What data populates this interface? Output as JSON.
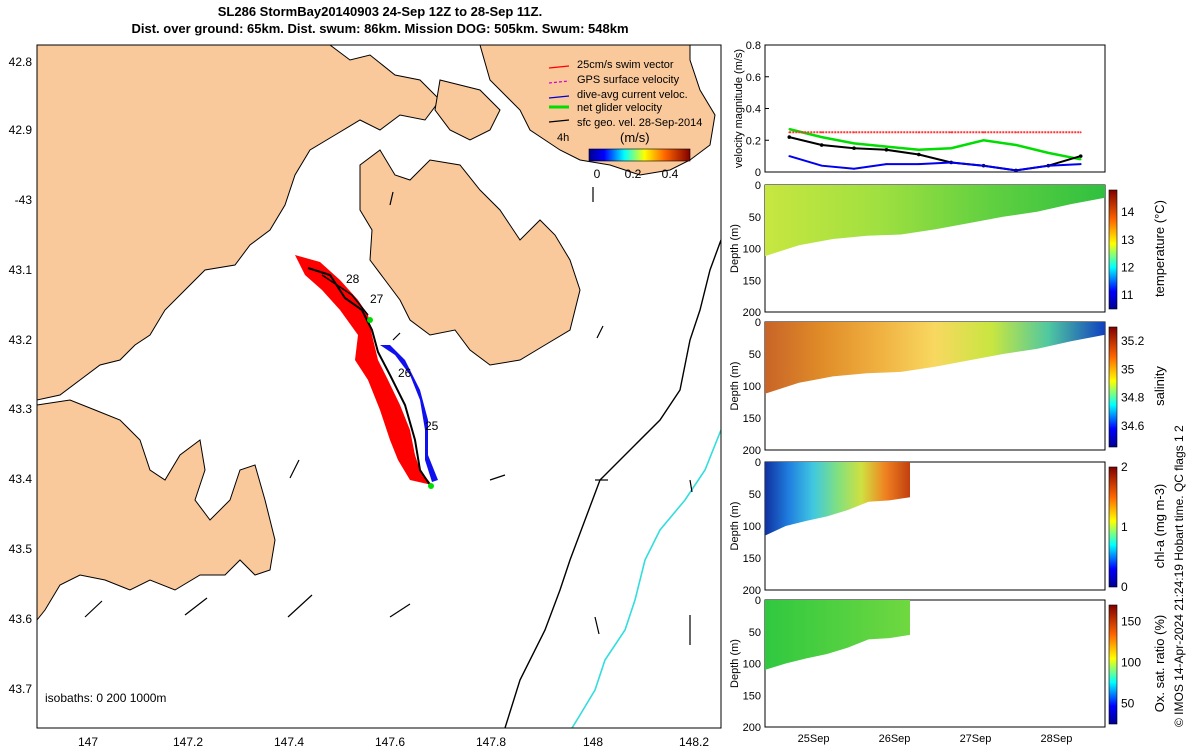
{
  "header": {
    "line1": "SL286 StormBay20140903 24-Sep 12Z to 28-Sep 11Z.",
    "line2": "Dist. over ground: 65km. Dist. swum: 86km. Mission DOG: 505km. Swum: 548km"
  },
  "map": {
    "lon_ticks": [
      "147",
      "147.2",
      "147.4",
      "147.6",
      "147.8",
      "148",
      "148.2"
    ],
    "lat_ticks": [
      "42.8",
      "42.9",
      "-43",
      "43.1",
      "43.2",
      "43.3",
      "43.4",
      "43.5",
      "43.6",
      "43.7"
    ],
    "isobath_label": "isobaths: 0   200  1000m",
    "legend": [
      {
        "label": "25cm/s swim vector",
        "color": "#ff0000"
      },
      {
        "label": "GPS surface velocity",
        "color": "#cc00cc"
      },
      {
        "label": "dive-avg current veloc.",
        "color": "#0000cc"
      },
      {
        "label": "net glider velocity",
        "color": "#00dd00"
      },
      {
        "label": "sfc geo. vel. 28-Sep-2014",
        "color": "#000000"
      }
    ],
    "legend_time": "4h",
    "colorbar_unit": "(m/s)",
    "colorbar_ticks": [
      "0",
      "0.2",
      "0.4"
    ],
    "day_labels": [
      "28",
      "27",
      "26",
      "25"
    ],
    "land_color": "#f9c89b",
    "track_color": "#ff0000"
  },
  "copyright": "© IMOS 14-Apr-2024 21:24:19 Hobart time. QC flags 1  2",
  "chart_data": [
    {
      "type": "line",
      "ylabel": "velocity magnitude (m/s)",
      "ylim": [
        0,
        0.8
      ],
      "yticks": [
        "0",
        "0.2",
        "0.4",
        "0.6",
        "0.8"
      ],
      "x": [
        "24.9",
        "25.3",
        "25.7",
        "26.1",
        "26.5",
        "26.9",
        "27.3",
        "27.7",
        "28.1",
        "28.5"
      ],
      "series": [
        {
          "name": "",
          "color": "#00dd00",
          "values": [
            0.27,
            0.22,
            0.18,
            0.16,
            0.14,
            0.15,
            0.2,
            0.17,
            0.12,
            0.08
          ]
        },
        {
          "name": "",
          "color": "#000000",
          "values": [
            0.22,
            0.17,
            0.15,
            0.14,
            0.11,
            0.06,
            0.04,
            0.01,
            0.04,
            0.1
          ]
        },
        {
          "name": "",
          "color": "#0000ee",
          "values": [
            0.1,
            0.04,
            0.02,
            0.05,
            0.05,
            0.06,
            0.04,
            0.01,
            0.04,
            0.05
          ]
        },
        {
          "name": "",
          "color": "#ff3333",
          "values": [
            0.25,
            0.25,
            0.25,
            0.25,
            0.25,
            0.25,
            0.25,
            0.25,
            0.25,
            0.25
          ]
        }
      ]
    },
    {
      "type": "heatmap",
      "ylabel": "Depth (m)",
      "colorbar_label": "temperature (°C)",
      "ylim": [
        200,
        0
      ],
      "yticks": [
        "0",
        "50",
        "100",
        "150",
        "200"
      ],
      "colorbar_ticks": [
        "11",
        "12",
        "13",
        "14"
      ],
      "colorbar_range": [
        10.5,
        14.8
      ]
    },
    {
      "type": "heatmap",
      "ylabel": "Depth (m)",
      "colorbar_label": "salinity",
      "ylim": [
        200,
        0
      ],
      "yticks": [
        "0",
        "50",
        "100",
        "150",
        "200"
      ],
      "colorbar_ticks": [
        "34.6",
        "34.8",
        "35",
        "35.2"
      ],
      "colorbar_range": [
        34.45,
        35.3
      ]
    },
    {
      "type": "heatmap",
      "ylabel": "Depth (m)",
      "colorbar_label": "chl-a (mg m-3)",
      "ylim": [
        200,
        0
      ],
      "yticks": [
        "0",
        "50",
        "100",
        "150",
        "200"
      ],
      "colorbar_ticks": [
        "0",
        "1",
        "2"
      ],
      "colorbar_range": [
        0,
        2
      ]
    },
    {
      "type": "heatmap",
      "ylabel": "Depth (m)",
      "colorbar_label": "Ox. sat. ratio (%)",
      "ylim": [
        200,
        0
      ],
      "yticks": [
        "0",
        "50",
        "100",
        "150",
        "200"
      ],
      "colorbar_ticks": [
        "50",
        "100",
        "150"
      ],
      "colorbar_range": [
        25,
        170
      ]
    }
  ],
  "time_axis": [
    "25Sep",
    "26Sep",
    "27Sep",
    "28Sep"
  ]
}
